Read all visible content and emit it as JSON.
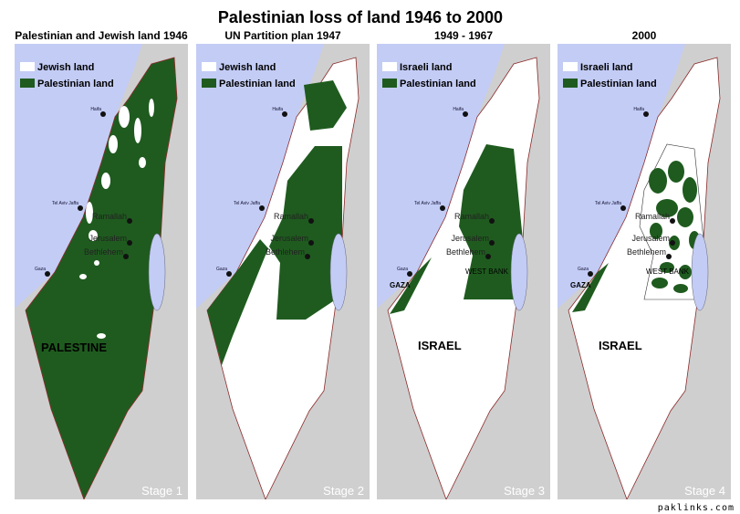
{
  "title": "Palestinian loss of land 1946 to 2000",
  "colors": {
    "sea": "#c3ccf5",
    "land": "#cfcfcf",
    "palestinian": "#1f5b1f",
    "israeli": "#ffffff",
    "border": "#8b2a2a"
  },
  "cities": [
    "Haifa",
    "Tel Aviv Jaffa",
    "Ramallah",
    "Jerusalem",
    "Bethlehem",
    "Gaza"
  ],
  "panels": [
    {
      "title": "Palestinian and Jewish land 1946",
      "legend": [
        "Jewish land",
        "Palestinian land"
      ],
      "country_label": "PALESTINE",
      "region_labels": [],
      "stage": "Stage 1"
    },
    {
      "title": "UN Partition plan  1947",
      "legend": [
        "Jewish land",
        "Palestinian land"
      ],
      "country_label": "",
      "region_labels": [],
      "stage": "Stage 2"
    },
    {
      "title": "1949 - 1967",
      "legend": [
        "Israeli land",
        "Palestinian land"
      ],
      "country_label": "ISRAEL",
      "region_labels": [
        "GAZA",
        "WEST BANK"
      ],
      "stage": "Stage 3"
    },
    {
      "title": "2000",
      "legend": [
        "Israeli land",
        "Palestinian land"
      ],
      "country_label": "ISRAEL",
      "region_labels": [
        "GAZA",
        "WEST BANK"
      ],
      "stage": "Stage 4"
    }
  ],
  "footer": "paklinks.com"
}
